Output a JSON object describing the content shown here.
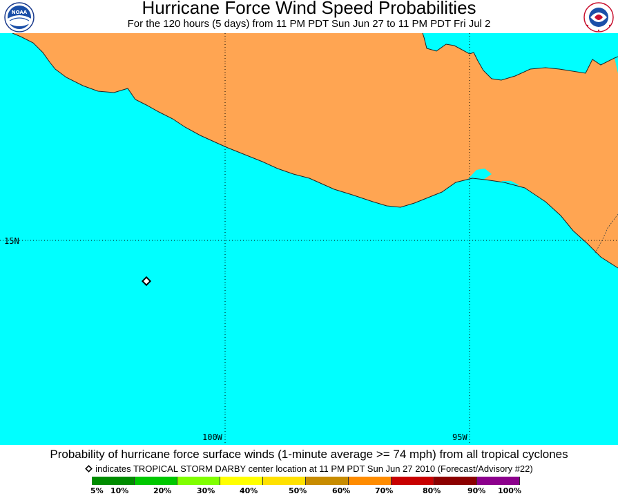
{
  "header": {
    "title": "Hurricane Force Wind Speed Probabilities",
    "subtitle": "For the 120 hours (5 days) from 11 PM PDT Sun Jun 27 to 11 PM PDT Fri Jul 2",
    "logo_left_text": "NOAA",
    "logo_right_text": "NATIONAL WEATHER SERVICE"
  },
  "map": {
    "land_color": "#ffa552",
    "ocean_color": "#00ffff",
    "lat_label": "15N",
    "lon_labels": [
      "100W",
      "95W"
    ]
  },
  "footer": {
    "caption": "Probability of hurricane force surface winds (1-minute average >= 74 mph) from all tropical cyclones",
    "storm_note": "indicates TROPICAL STORM DARBY center location at 11 PM PDT Sun Jun 27 2010 (Forecast/Advisory #22)",
    "legend": {
      "labels": [
        "5%",
        "10%",
        "20%",
        "30%",
        "40%",
        "50%",
        "60%",
        "70%",
        "80%",
        "90%",
        "100%"
      ],
      "colors": [
        "#008c00",
        "#00c800",
        "#80ff00",
        "#ffff00",
        "#ffe100",
        "#c88c00",
        "#ff8c00",
        "#c80000",
        "#8c0000",
        "#8c008c"
      ]
    }
  }
}
